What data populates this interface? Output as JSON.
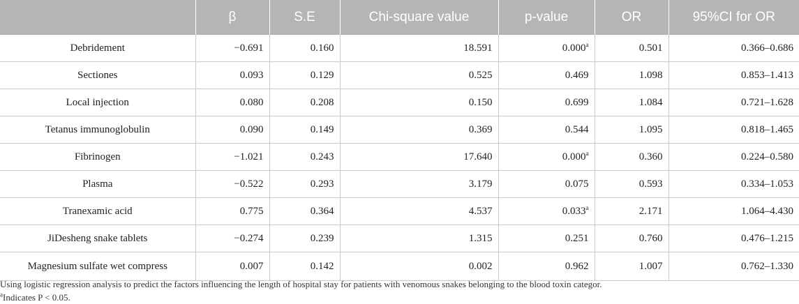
{
  "table": {
    "headers": [
      "",
      "β",
      "S.E",
      "Chi-square value",
      "p-value",
      "OR",
      "95%CI for OR"
    ],
    "rows": [
      {
        "factor": "Debridement",
        "beta": "−0.691",
        "se": "0.160",
        "chi": "18.591",
        "p": "0.000",
        "p_mark": "a",
        "or": "0.501",
        "ci": "0.366–0.686"
      },
      {
        "factor": "Sectiones",
        "beta": "0.093",
        "se": "0.129",
        "chi": "0.525",
        "p": "0.469",
        "p_mark": "",
        "or": "1.098",
        "ci": "0.853–1.413"
      },
      {
        "factor": "Local injection",
        "beta": "0.080",
        "se": "0.208",
        "chi": "0.150",
        "p": "0.699",
        "p_mark": "",
        "or": "1.084",
        "ci": "0.721–1.628"
      },
      {
        "factor": "Tetanus immunoglobulin",
        "beta": "0.090",
        "se": "0.149",
        "chi": "0.369",
        "p": "0.544",
        "p_mark": "",
        "or": "1.095",
        "ci": "0.818–1.465"
      },
      {
        "factor": "Fibrinogen",
        "beta": "−1.021",
        "se": "0.243",
        "chi": "17.640",
        "p": "0.000",
        "p_mark": "a",
        "or": "0.360",
        "ci": "0.224–0.580"
      },
      {
        "factor": "Plasma",
        "beta": "−0.522",
        "se": "0.293",
        "chi": "3.179",
        "p": "0.075",
        "p_mark": "",
        "or": "0.593",
        "ci": "0.334–1.053"
      },
      {
        "factor": "Tranexamic acid",
        "beta": "0.775",
        "se": "0.364",
        "chi": "4.537",
        "p": "0.033",
        "p_mark": "a",
        "or": "2.171",
        "ci": "1.064–4.430"
      },
      {
        "factor": "JiDesheng snake tablets",
        "beta": "−0.274",
        "se": "0.239",
        "chi": "1.315",
        "p": "0.251",
        "p_mark": "",
        "or": "0.760",
        "ci": "0.476–1.215"
      },
      {
        "factor": "Magnesium sulfate wet compress",
        "beta": "0.007",
        "se": "0.142",
        "chi": "0.002",
        "p": "0.962",
        "p_mark": "",
        "or": "1.007",
        "ci": "0.762–1.330"
      }
    ]
  },
  "footnotes": {
    "note": "Using logistic regression analysis to predict the factors influencing the length of hospital stay for patients with venomous snakes belonging to the blood toxin categor.",
    "mark": "a",
    "mark_text": "Indicates P < 0.05."
  }
}
